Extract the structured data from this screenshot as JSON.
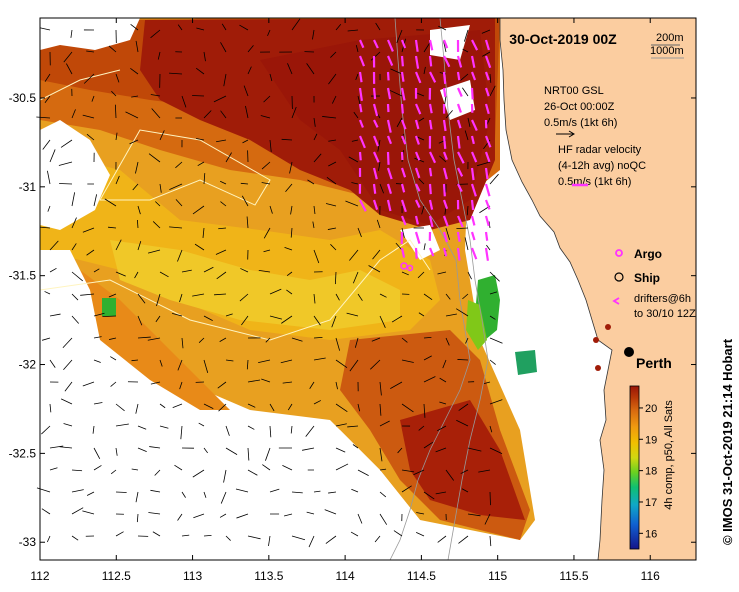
{
  "title": "30-Oct-2019 00Z",
  "depth_legend": {
    "c200": "200m",
    "c1000": "1000m"
  },
  "nrt_legend": {
    "line1": "NRT00 GSL",
    "line2": "26-Oct 00:00Z",
    "scale": "0.5m/s (1kt 6h)"
  },
  "hf_legend": {
    "line1": "HF radar velocity",
    "line2": "(4-12h avg) noQC",
    "scale": "0.5m/s (1kt 6h)"
  },
  "symbol_legend": {
    "argo": "Argo",
    "ship": "Ship",
    "drifters1": "drifters@6h",
    "drifters2": "to 30/10 12Z"
  },
  "city": "Perth",
  "x_axis": {
    "ticks": [
      "112",
      "112.5",
      "113",
      "113.5",
      "114",
      "114.5",
      "115",
      "115.5",
      "116"
    ],
    "range": [
      112,
      116.3
    ]
  },
  "y_axis": {
    "ticks": [
      "-30.5",
      "-31",
      "-31.5",
      "-32",
      "-32.5",
      "-33"
    ],
    "range": [
      -33.1,
      -30.05
    ]
  },
  "colorbar": {
    "ticks": [
      "16",
      "17",
      "18",
      "19",
      "20"
    ],
    "range": [
      15.5,
      20.7
    ],
    "label": "4h comp, p50, All Sats",
    "colors": [
      "#1a1a9a",
      "#1060d0",
      "#10a0d0",
      "#10c070",
      "#60d020",
      "#c0d010",
      "#f0c800",
      "#f0a010",
      "#e07810",
      "#c84a08",
      "#a01c08"
    ]
  },
  "credit": "© IMOS 31-Oct-2019 21:14 Hobart",
  "colors": {
    "land": "#fbcda0",
    "sea": "#ffffff",
    "hf": "#ff33ff"
  }
}
